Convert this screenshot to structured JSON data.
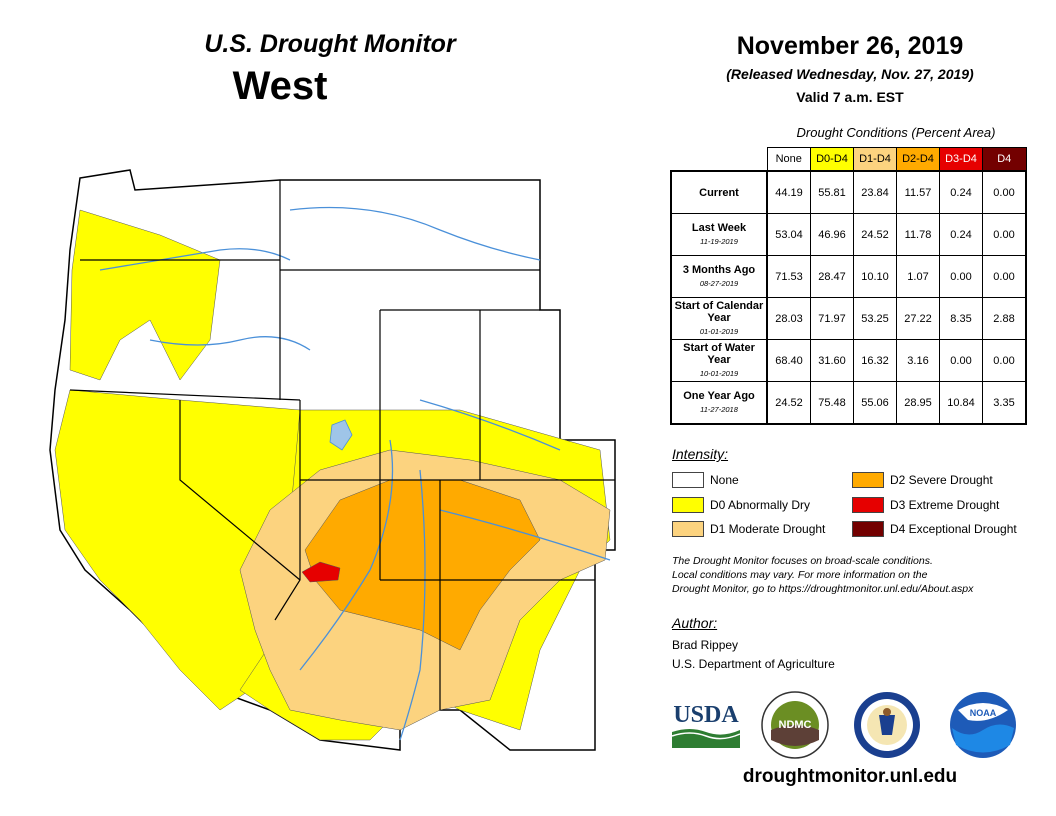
{
  "header": {
    "title": "U.S. Drought Monitor",
    "region": "West",
    "date": "November 26, 2019",
    "released": "(Released Wednesday, Nov. 27, 2019)",
    "valid": "Valid 7 a.m. EST"
  },
  "table": {
    "caption": "Drought Conditions (Percent Area)",
    "columns": [
      {
        "label": "None",
        "color": "#ffffff",
        "text": "#000000"
      },
      {
        "label": "D0-D4",
        "color": "#ffff00",
        "text": "#000000"
      },
      {
        "label": "D1-D4",
        "color": "#fcd37f",
        "text": "#000000"
      },
      {
        "label": "D2-D4",
        "color": "#ffaa00",
        "text": "#000000"
      },
      {
        "label": "D3-D4",
        "color": "#e60000",
        "text": "#ffffff"
      },
      {
        "label": "D4",
        "color": "#730000",
        "text": "#ffffff"
      }
    ],
    "rows": [
      {
        "label": "Current",
        "sub": "",
        "values": [
          "44.19",
          "55.81",
          "23.84",
          "11.57",
          "0.24",
          "0.00"
        ]
      },
      {
        "label": "Last Week",
        "sub": "11-19-2019",
        "values": [
          "53.04",
          "46.96",
          "24.52",
          "11.78",
          "0.24",
          "0.00"
        ]
      },
      {
        "label": "3 Months Ago",
        "sub": "08-27-2019",
        "values": [
          "71.53",
          "28.47",
          "10.10",
          "1.07",
          "0.00",
          "0.00"
        ]
      },
      {
        "label": "Start of Calendar Year",
        "sub": "01-01-2019",
        "values": [
          "28.03",
          "71.97",
          "53.25",
          "27.22",
          "8.35",
          "2.88"
        ]
      },
      {
        "label": "Start of Water Year",
        "sub": "10-01-2019",
        "values": [
          "68.40",
          "31.60",
          "16.32",
          "3.16",
          "0.00",
          "0.00"
        ]
      },
      {
        "label": "One Year Ago",
        "sub": "11-27-2018",
        "values": [
          "24.52",
          "75.48",
          "55.06",
          "28.95",
          "10.84",
          "3.35"
        ]
      }
    ]
  },
  "legend": {
    "title": "Intensity:",
    "items": [
      {
        "label": "None",
        "color": "#ffffff"
      },
      {
        "label": "D0 Abnormally Dry",
        "color": "#ffff00"
      },
      {
        "label": "D1 Moderate Drought",
        "color": "#fcd37f"
      },
      {
        "label": "D2 Severe Drought",
        "color": "#ffaa00"
      },
      {
        "label": "D3 Extreme Drought",
        "color": "#e60000"
      },
      {
        "label": "D4 Exceptional Drought",
        "color": "#730000"
      }
    ]
  },
  "note": {
    "line1": "The Drought Monitor focuses on broad-scale conditions.",
    "line2": "Local conditions may vary. For more information on the",
    "line3": "Drought Monitor, go to https://droughtmonitor.unl.edu/About.aspx"
  },
  "author": {
    "title": "Author:",
    "name": "Brad Rippey",
    "org": "U.S. Department of Agriculture"
  },
  "logos": {
    "usda": "USDA",
    "ndmc": "NDMC",
    "noaa": "NOAA"
  },
  "website": "droughtmonitor.unl.edu",
  "colors": {
    "none": "#ffffff",
    "d0": "#ffff00",
    "d1": "#fcd37f",
    "d2": "#ffaa00",
    "d3": "#e60000",
    "d4": "#730000",
    "water": "#4a90d9",
    "lake": "#9fc5e8"
  },
  "icons": [
    "usda-logo-icon",
    "ndmc-logo-icon",
    "commerce-seal-icon",
    "noaa-logo-icon"
  ]
}
